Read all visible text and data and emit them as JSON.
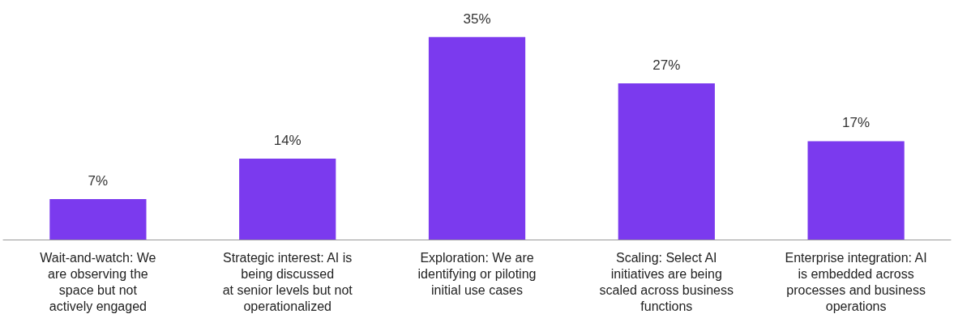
{
  "chart_data": {
    "type": "bar",
    "categories": [
      "Wait-and-watch: We\nare observing the\nspace but not\nactively engaged",
      "Strategic interest: AI is\nbeing discussed\nat senior levels but not\noperationalized",
      "Exploration: We are\nidentifying or piloting\ninitial use cases",
      "Scaling: Select AI\ninitiatives are being\nscaled across business\nfunctions",
      "Enterprise integration: AI\nis embedded across\nprocesses and business\noperations"
    ],
    "values": [
      7,
      14,
      35,
      27,
      17
    ],
    "value_labels": [
      "7%",
      "14%",
      "35%",
      "27%",
      "17%"
    ],
    "color": "#7b3aee",
    "grid": false
  }
}
